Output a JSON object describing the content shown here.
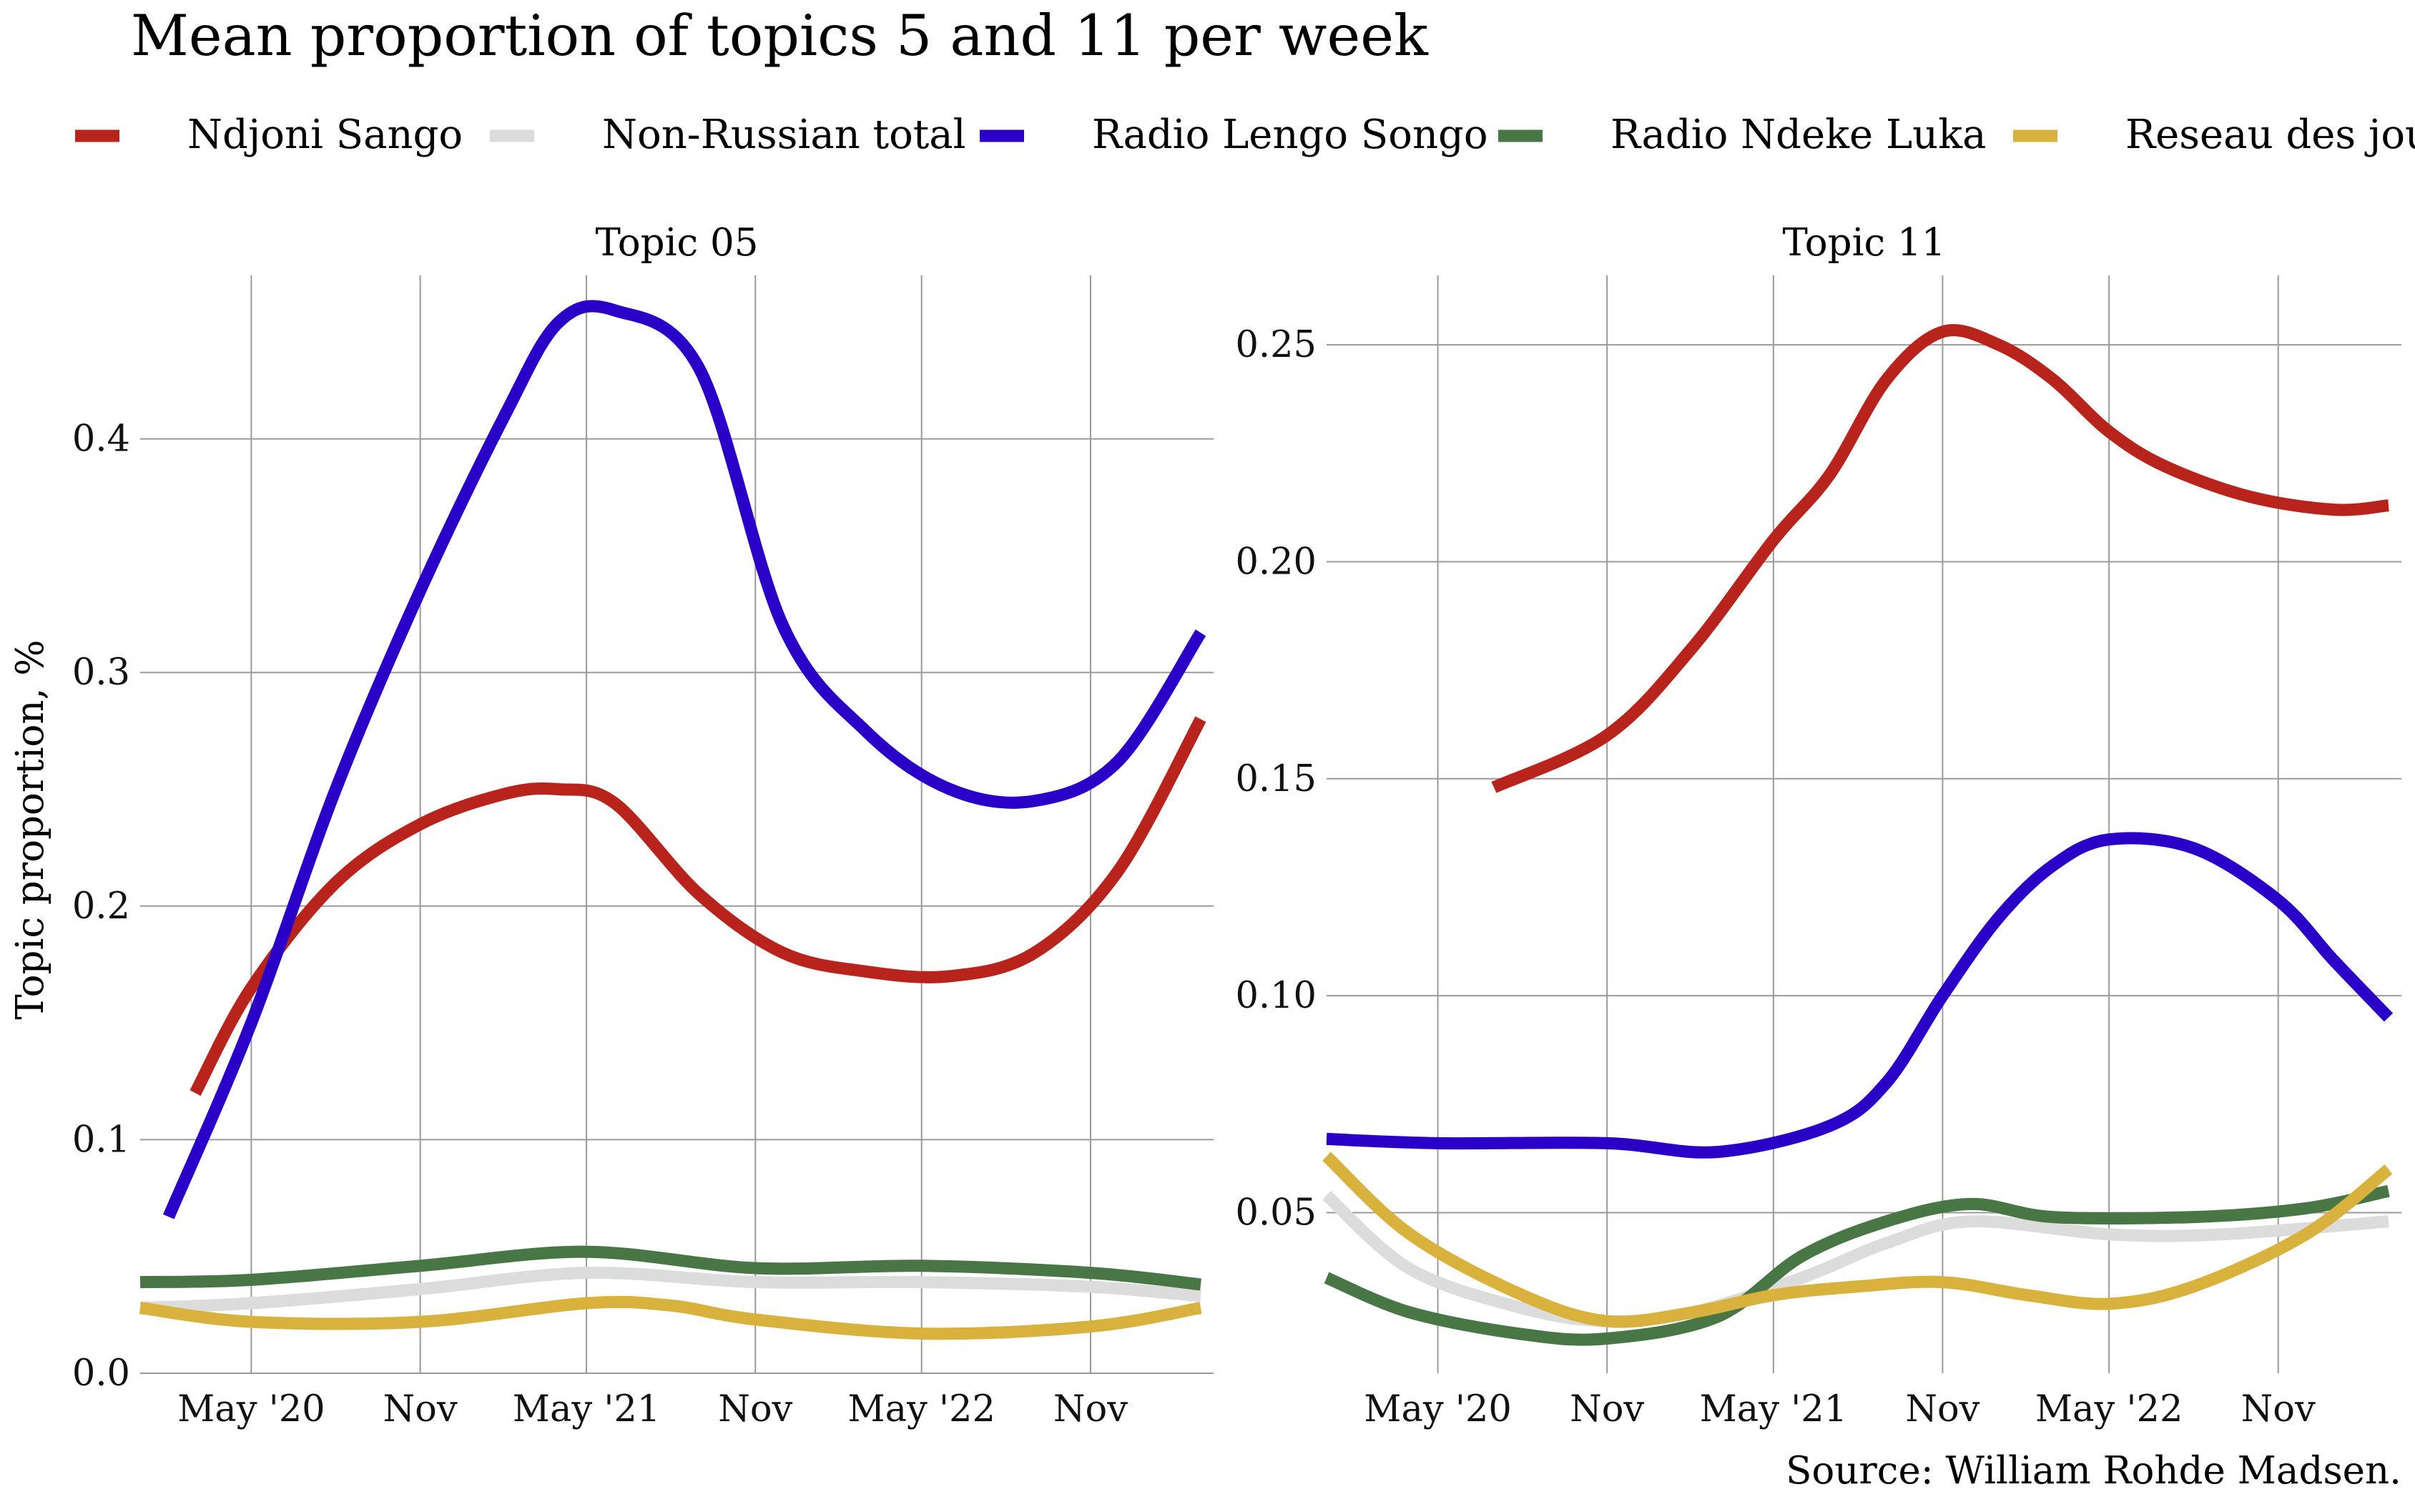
{
  "title": "Mean proportion of topics 5 and 11 per week",
  "caption": "Source: William Rohde Madsen.",
  "ylabel": "Topic proportion, %",
  "legend": {
    "position": "top",
    "entries": [
      {
        "name": "Ndjoni Sango",
        "color": "#b8231b"
      },
      {
        "name": "Non-Russian total",
        "color": "#dcdcdc"
      },
      {
        "name": "Radio Lengo Songo",
        "color": "#2a00c8"
      },
      {
        "name": "Radio Ndeke Luka",
        "color": "#487645"
      },
      {
        "name": "Reseau des journalistes",
        "color": "#d8b23c"
      }
    ]
  },
  "chart_data": [
    {
      "type": "line",
      "facet": "Topic 05",
      "x_ticks": [
        "May '20",
        "Nov",
        "May '21",
        "Nov",
        "May '22",
        "Nov"
      ],
      "x_tick_dates": [
        "2020-05-01",
        "2020-11-01",
        "2021-05-01",
        "2021-11-01",
        "2022-05-01",
        "2022-11-01"
      ],
      "xlim": [
        "2020-01-01",
        "2023-03-15"
      ],
      "y_ticks": [
        "0.0",
        "0.1",
        "0.2",
        "0.3",
        "0.4"
      ],
      "ylim": [
        0,
        0.47
      ],
      "grid": true,
      "series": [
        {
          "name": "Ndjoni Sango",
          "color": "#b8231b",
          "points": [
            [
              "2020-03-01",
              0.12
            ],
            [
              "2020-05-01",
              0.165
            ],
            [
              "2020-08-01",
              0.21
            ],
            [
              "2020-11-01",
              0.235
            ],
            [
              "2021-02-01",
              0.248
            ],
            [
              "2021-04-01",
              0.25
            ],
            [
              "2021-06-01",
              0.244
            ],
            [
              "2021-09-01",
              0.205
            ],
            [
              "2021-12-01",
              0.18
            ],
            [
              "2022-03-01",
              0.172
            ],
            [
              "2022-06-01",
              0.17
            ],
            [
              "2022-09-01",
              0.18
            ],
            [
              "2022-12-01",
              0.215
            ],
            [
              "2023-03-01",
              0.28
            ]
          ]
        },
        {
          "name": "Non-Russian total",
          "color": "#dcdcdc",
          "points": [
            [
              "2020-01-01",
              0.028
            ],
            [
              "2020-05-01",
              0.03
            ],
            [
              "2020-11-01",
              0.036
            ],
            [
              "2021-05-01",
              0.043
            ],
            [
              "2021-11-01",
              0.039
            ],
            [
              "2022-05-01",
              0.039
            ],
            [
              "2022-11-01",
              0.037
            ],
            [
              "2023-03-01",
              0.033
            ]
          ]
        },
        {
          "name": "Radio Lengo Songo",
          "color": "#2a00c8",
          "points": [
            [
              "2020-02-01",
              0.067
            ],
            [
              "2020-05-01",
              0.15
            ],
            [
              "2020-08-01",
              0.25
            ],
            [
              "2020-11-01",
              0.335
            ],
            [
              "2021-02-01",
              0.41
            ],
            [
              "2021-04-01",
              0.45
            ],
            [
              "2021-06-01",
              0.455
            ],
            [
              "2021-09-01",
              0.43
            ],
            [
              "2021-12-01",
              0.32
            ],
            [
              "2022-03-01",
              0.275
            ],
            [
              "2022-06-01",
              0.25
            ],
            [
              "2022-09-01",
              0.245
            ],
            [
              "2022-12-01",
              0.262
            ],
            [
              "2023-03-01",
              0.317
            ]
          ]
        },
        {
          "name": "Radio Ndeke Luka",
          "color": "#487645",
          "points": [
            [
              "2020-01-01",
              0.039
            ],
            [
              "2020-05-01",
              0.04
            ],
            [
              "2020-11-01",
              0.046
            ],
            [
              "2021-05-01",
              0.052
            ],
            [
              "2021-11-01",
              0.045
            ],
            [
              "2022-05-01",
              0.046
            ],
            [
              "2022-11-01",
              0.043
            ],
            [
              "2023-03-01",
              0.038
            ]
          ]
        },
        {
          "name": "Reseau des journalistes",
          "color": "#d8b23c",
          "points": [
            [
              "2020-01-01",
              0.028
            ],
            [
              "2020-05-01",
              0.022
            ],
            [
              "2020-11-01",
              0.022
            ],
            [
              "2021-05-01",
              0.03
            ],
            [
              "2021-08-01",
              0.029
            ],
            [
              "2021-11-01",
              0.023
            ],
            [
              "2022-05-01",
              0.017
            ],
            [
              "2022-11-01",
              0.02
            ],
            [
              "2023-03-01",
              0.028
            ]
          ]
        }
      ]
    },
    {
      "type": "line",
      "facet": "Topic 11",
      "x_ticks": [
        "May '20",
        "Nov",
        "May '21",
        "Nov",
        "May '22",
        "Nov"
      ],
      "x_tick_dates": [
        "2020-05-01",
        "2020-11-01",
        "2021-05-01",
        "2021-11-01",
        "2022-05-01",
        "2022-11-01"
      ],
      "xlim": [
        "2020-01-01",
        "2023-03-15"
      ],
      "y_ticks": [
        "0.05",
        "0.10",
        "0.15",
        "0.20",
        "0.25"
      ],
      "ylim": [
        0.013,
        0.266
      ],
      "grid": true,
      "series": [
        {
          "name": "Ndjoni Sango",
          "color": "#b8231b",
          "points": [
            [
              "2020-07-01",
              0.148
            ],
            [
              "2020-11-01",
              0.16
            ],
            [
              "2021-02-01",
              0.18
            ],
            [
              "2021-05-01",
              0.205
            ],
            [
              "2021-07-01",
              0.22
            ],
            [
              "2021-09-01",
              0.242
            ],
            [
              "2021-11-01",
              0.253
            ],
            [
              "2022-01-01",
              0.25
            ],
            [
              "2022-03-01",
              0.242
            ],
            [
              "2022-05-01",
              0.23
            ],
            [
              "2022-07-01",
              0.222
            ],
            [
              "2022-10-01",
              0.215
            ],
            [
              "2023-01-01",
              0.212
            ],
            [
              "2023-03-01",
              0.213
            ]
          ]
        },
        {
          "name": "Non-Russian total",
          "color": "#dcdcdc",
          "points": [
            [
              "2020-01-01",
              0.054
            ],
            [
              "2020-04-01",
              0.037
            ],
            [
              "2020-08-01",
              0.028
            ],
            [
              "2020-11-01",
              0.025
            ],
            [
              "2021-02-01",
              0.027
            ],
            [
              "2021-06-01",
              0.035
            ],
            [
              "2021-09-01",
              0.043
            ],
            [
              "2021-12-01",
              0.048
            ],
            [
              "2022-05-01",
              0.045
            ],
            [
              "2022-09-01",
              0.045
            ],
            [
              "2023-03-01",
              0.048
            ]
          ]
        },
        {
          "name": "Radio Lengo Songo",
          "color": "#2a00c8",
          "points": [
            [
              "2020-01-01",
              0.067
            ],
            [
              "2020-05-01",
              0.066
            ],
            [
              "2020-11-01",
              0.066
            ],
            [
              "2021-03-01",
              0.064
            ],
            [
              "2021-07-01",
              0.07
            ],
            [
              "2021-09-01",
              0.08
            ],
            [
              "2021-11-01",
              0.1
            ],
            [
              "2022-01-01",
              0.118
            ],
            [
              "2022-03-01",
              0.13
            ],
            [
              "2022-05-01",
              0.136
            ],
            [
              "2022-08-01",
              0.134
            ],
            [
              "2022-11-01",
              0.122
            ],
            [
              "2023-01-01",
              0.108
            ],
            [
              "2023-03-01",
              0.095
            ]
          ]
        },
        {
          "name": "Radio Ndeke Luka",
          "color": "#487645",
          "points": [
            [
              "2020-01-01",
              0.035
            ],
            [
              "2020-04-01",
              0.027
            ],
            [
              "2020-08-01",
              0.022
            ],
            [
              "2020-11-01",
              0.021
            ],
            [
              "2021-03-01",
              0.026
            ],
            [
              "2021-06-01",
              0.04
            ],
            [
              "2021-09-01",
              0.048
            ],
            [
              "2021-12-01",
              0.052
            ],
            [
              "2022-03-01",
              0.049
            ],
            [
              "2022-08-01",
              0.049
            ],
            [
              "2022-12-01",
              0.051
            ],
            [
              "2023-03-01",
              0.055
            ]
          ]
        },
        {
          "name": "Reseau des journalistes",
          "color": "#d8b23c",
          "points": [
            [
              "2020-01-01",
              0.063
            ],
            [
              "2020-04-01",
              0.045
            ],
            [
              "2020-08-01",
              0.031
            ],
            [
              "2020-11-01",
              0.025
            ],
            [
              "2021-02-01",
              0.027
            ],
            [
              "2021-05-01",
              0.031
            ],
            [
              "2021-08-01",
              0.033
            ],
            [
              "2021-11-01",
              0.034
            ],
            [
              "2022-02-01",
              0.031
            ],
            [
              "2022-05-01",
              0.029
            ],
            [
              "2022-08-01",
              0.033
            ],
            [
              "2022-12-01",
              0.045
            ],
            [
              "2023-03-01",
              0.06
            ]
          ]
        }
      ]
    }
  ]
}
